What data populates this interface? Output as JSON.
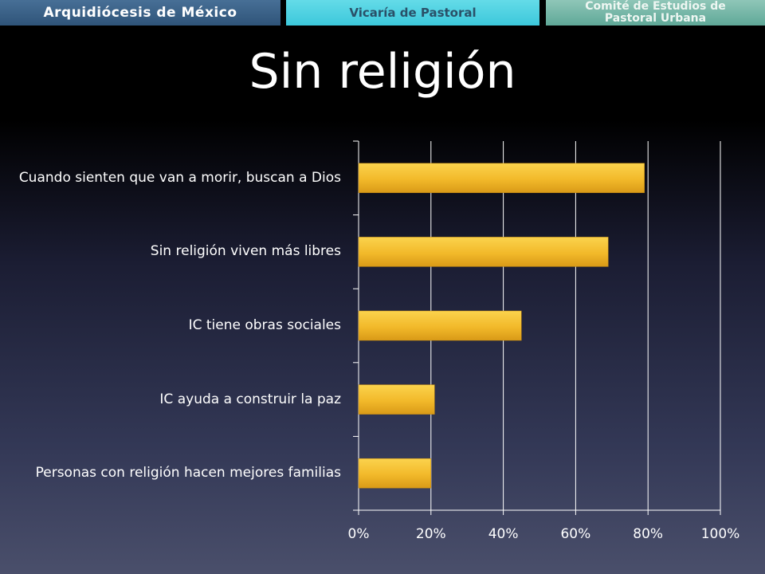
{
  "header": {
    "tab1": "Arquidiócesis de México",
    "tab2": "Vicaría de Pastoral",
    "tab3_line1": "Comité de Estudios de",
    "tab3_line2": "Pastoral Urbana"
  },
  "chart_data": {
    "type": "bar",
    "orientation": "horizontal",
    "title": "Sin religión",
    "categories": [
      "Cuando sienten que van a morir, buscan a Dios",
      "Sin religión viven más libres",
      "IC tiene obras sociales",
      "IC ayuda a construir la paz",
      "Personas con religión hacen mejores familias"
    ],
    "values": [
      79,
      69,
      45,
      21,
      20
    ],
    "xlim": [
      0,
      100
    ],
    "x_ticks": [
      "0%",
      "20%",
      "40%",
      "60%",
      "80%",
      "100%"
    ],
    "grid": true,
    "bar_color": "#f2b92a"
  }
}
